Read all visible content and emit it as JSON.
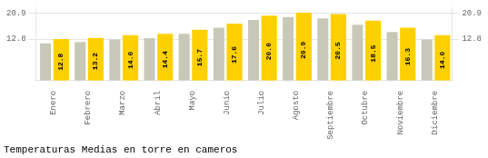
{
  "chart_data": {
    "type": "bar",
    "title": "Temperaturas Medias en torre en cameros",
    "categories": [
      "Enero",
      "Febrero",
      "Marzo",
      "Abril",
      "Mayo",
      "Junio",
      "Julio",
      "Agosto",
      "Septiembre",
      "Octubre",
      "Noviembre",
      "Diciembre"
    ],
    "series": [
      {
        "color": "#C8C8B8",
        "values": [
          11.5,
          11.9,
          12.7,
          13.1,
          14.4,
          16.3,
          18.7,
          19.6,
          19.2,
          17.2,
          15.0,
          12.7
        ]
      },
      {
        "color": "#FFD000",
        "values": [
          12.8,
          13.2,
          14.0,
          14.4,
          15.7,
          17.6,
          20.0,
          20.9,
          20.5,
          18.5,
          16.3,
          14.0
        ],
        "data_labels": true,
        "value_labels": [
          "12.8",
          "13.2",
          "14.0",
          "14.4",
          "15.7",
          "17.6",
          "20.0",
          "20.9",
          "20.5",
          "18.5",
          "16.3",
          "14.0"
        ]
      }
    ],
    "ylim": [
      0,
      22.5
    ],
    "yticks": [
      12.8,
      20.9
    ],
    "y2lim": [
      0,
      22.5
    ],
    "y2ticks": [
      12.8,
      20.9
    ],
    "grid": true
  }
}
